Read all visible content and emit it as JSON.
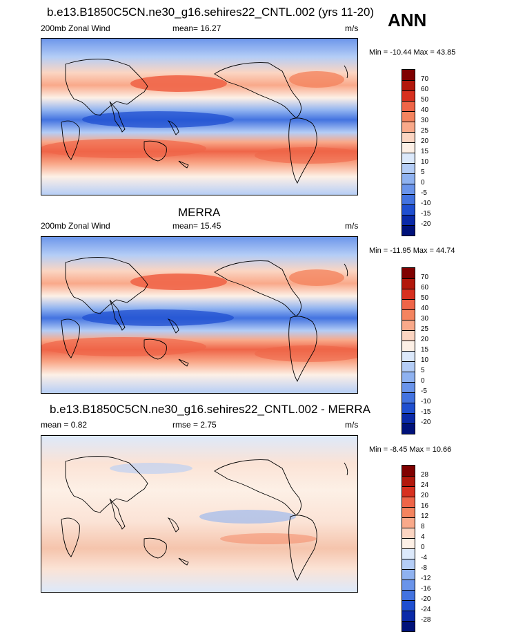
{
  "season": "ANN",
  "panels": [
    {
      "title": "b.e13.B1850C5CN.ne30_g16.sehires22_CNTL.002 (yrs 11-20)",
      "left_label": "200mb Zonal Wind",
      "center_label": "mean=  16.27",
      "right_label": "m/s",
      "minmax": "Min = -10.44 Max =  43.85",
      "colorbar_labels": [
        "70",
        "60",
        "50",
        "40",
        "30",
        "25",
        "20",
        "15",
        "10",
        "5",
        "0",
        "-5",
        "-10",
        "-15",
        "-20"
      ]
    },
    {
      "title": "MERRA",
      "left_label": "200mb Zonal Wind",
      "center_label": "mean=  15.45",
      "right_label": "m/s",
      "minmax": "Min = -11.95 Max =  44.74",
      "colorbar_labels": [
        "70",
        "60",
        "50",
        "40",
        "30",
        "25",
        "20",
        "15",
        "10",
        "5",
        "0",
        "-5",
        "-10",
        "-15",
        "-20"
      ]
    },
    {
      "title": "b.e13.B1850C5CN.ne30_g16.sehires22_CNTL.002 - MERRA",
      "left_label": "mean =   0.82",
      "center_label": "rmse =   2.75",
      "right_label": "m/s",
      "minmax": "Min =  -8.45 Max =  10.66",
      "colorbar_labels": [
        "28",
        "24",
        "20",
        "16",
        "12",
        "8",
        "4",
        "0",
        "-4",
        "-8",
        "-12",
        "-16",
        "-20",
        "-24",
        "-28"
      ]
    }
  ],
  "colors": {
    "wind_scale": [
      "#7f0000",
      "#b2180c",
      "#d7301f",
      "#ef6548",
      "#f4845f",
      "#f9a98a",
      "#fbd5c2",
      "#fdf0e6",
      "#dce9fb",
      "#b4cdf6",
      "#8fb2f0",
      "#6a94ea",
      "#4373e0",
      "#1f4fd0",
      "#0a2aa8",
      "#00127a"
    ],
    "diff_scale": [
      "#7f0000",
      "#b2180c",
      "#d7301f",
      "#ef6548",
      "#f4845f",
      "#f9a98a",
      "#fbd5c2",
      "#fdf0e6",
      "#dce9fb",
      "#b4cdf6",
      "#8fb2f0",
      "#6a94ea",
      "#4373e0",
      "#1f4fd0",
      "#0a2aa8",
      "#00127a"
    ]
  }
}
